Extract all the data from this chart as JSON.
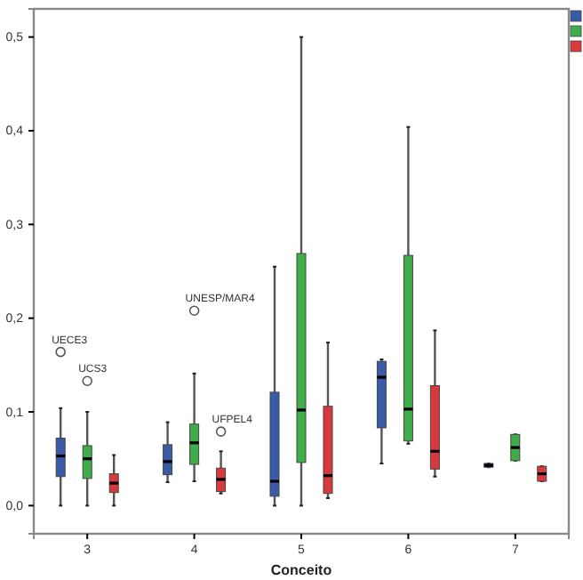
{
  "chart_data": {
    "type": "box",
    "xlabel": "Conceito",
    "categories": [
      "3",
      "4",
      "5",
      "6",
      "7"
    ],
    "ylim": [
      -0.03,
      0.53
    ],
    "yticks": [
      {
        "value": 0,
        "label": "0,0"
      },
      {
        "value": 0.1,
        "label": "0,1"
      },
      {
        "value": 0.2,
        "label": "0,2"
      },
      {
        "value": 0.3,
        "label": "0,3"
      },
      {
        "value": 0.4,
        "label": "0,4"
      },
      {
        "value": 0.5,
        "label": "0,5"
      }
    ],
    "grid": false,
    "series": [
      {
        "color": "#3a5ba8",
        "boxes": [
          {
            "low": 0,
            "q1": 0.031,
            "median": 0.053,
            "q3": 0.072,
            "high": 0.104,
            "outliers": [
              0.164
            ]
          },
          {
            "low": 0.025,
            "q1": 0.033,
            "median": 0.047,
            "q3": 0.065,
            "high": 0.089
          },
          {
            "low": 0,
            "q1": 0.01,
            "median": 0.026,
            "q3": 0.121,
            "high": 0.255
          },
          {
            "low": 0.045,
            "q1": 0.083,
            "median": 0.137,
            "q3": 0.154,
            "high": 0.156
          },
          {
            "low": 0.041,
            "q1": 0.041,
            "median": 0.043,
            "q3": 0.045,
            "high": 0.045
          }
        ]
      },
      {
        "color": "#3fad4a",
        "boxes": [
          {
            "low": 0,
            "q1": 0.029,
            "median": 0.05,
            "q3": 0.064,
            "high": 0.1,
            "outliers": [
              0.133
            ]
          },
          {
            "low": 0.026,
            "q1": 0.044,
            "median": 0.067,
            "q3": 0.087,
            "high": 0.141,
            "outliers": [
              0.208
            ]
          },
          {
            "low": 0,
            "q1": 0.046,
            "median": 0.102,
            "q3": 0.269,
            "high": 0.5
          },
          {
            "low": 0.066,
            "q1": 0.069,
            "median": 0.103,
            "q3": 0.267,
            "high": 0.404
          },
          {
            "low": 0.048,
            "q1": 0.048,
            "median": 0.062,
            "q3": 0.076,
            "high": 0.076
          }
        ]
      },
      {
        "color": "#d9393c",
        "boxes": [
          {
            "low": 0,
            "q1": 0.014,
            "median": 0.024,
            "q3": 0.034,
            "high": 0.054
          },
          {
            "low": 0.013,
            "q1": 0.015,
            "median": 0.028,
            "q3": 0.04,
            "high": 0.058,
            "outliers": [
              0.079
            ]
          },
          {
            "low": 0.008,
            "q1": 0.013,
            "median": 0.032,
            "q3": 0.106,
            "high": 0.174
          },
          {
            "low": 0.031,
            "q1": 0.039,
            "median": 0.058,
            "q3": 0.128,
            "high": 0.187
          },
          {
            "low": 0.026,
            "q1": 0.026,
            "median": 0.034,
            "q3": 0.042,
            "high": 0.042
          }
        ]
      }
    ],
    "annotations": [
      "UECE3",
      "UCS3",
      "UNESP/MAR4",
      "UFPEL4"
    ]
  }
}
